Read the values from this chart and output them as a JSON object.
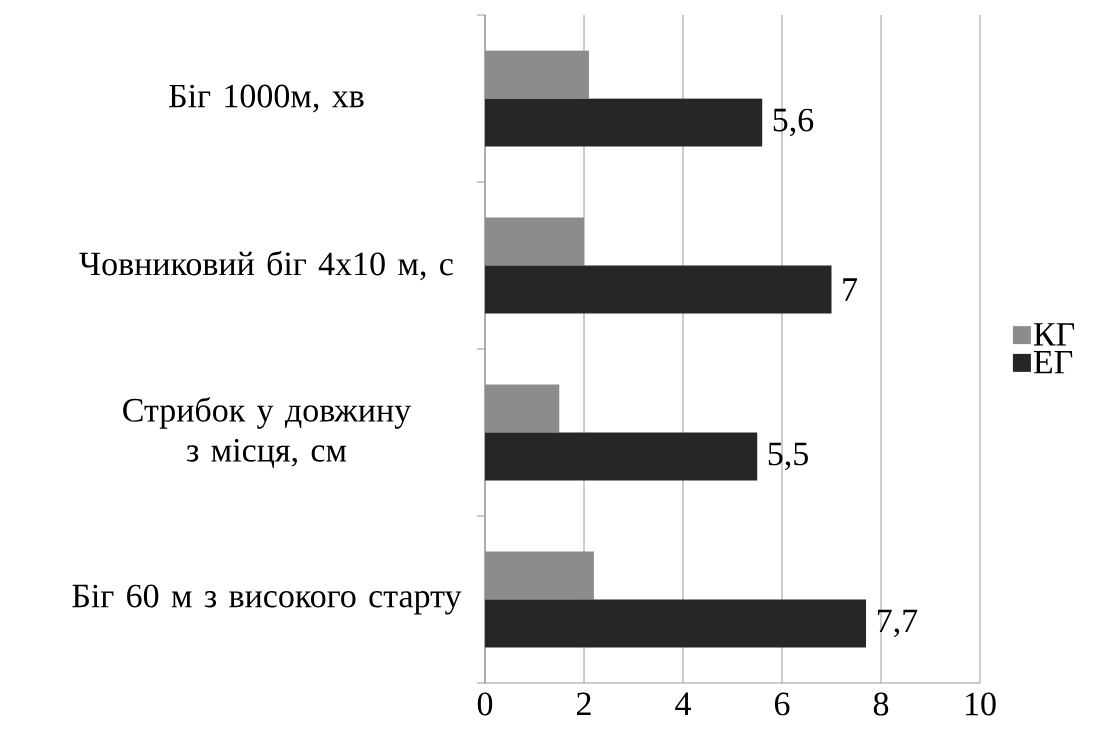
{
  "chart_data": {
    "type": "bar",
    "orientation": "horizontal",
    "categories": [
      "Біг 1000м, хв",
      "Човниковий біг 4х10 м, с",
      "Стрибок у довжину з місця, см",
      "Біг 60 м з високого старту"
    ],
    "series": [
      {
        "name": "КГ",
        "color": "#8c8c8c",
        "values": [
          2.1,
          2.0,
          1.5,
          2.2
        ]
      },
      {
        "name": "ЕГ",
        "color": "#262626",
        "values": [
          5.6,
          7,
          5.5,
          7.7
        ],
        "value_labels": [
          "5,6",
          "7",
          "5,5",
          "7,7"
        ]
      }
    ],
    "xlim": [
      0,
      10
    ],
    "xticks": [
      0,
      2,
      4,
      6,
      8,
      10
    ],
    "grid": "x",
    "legend": "right"
  }
}
